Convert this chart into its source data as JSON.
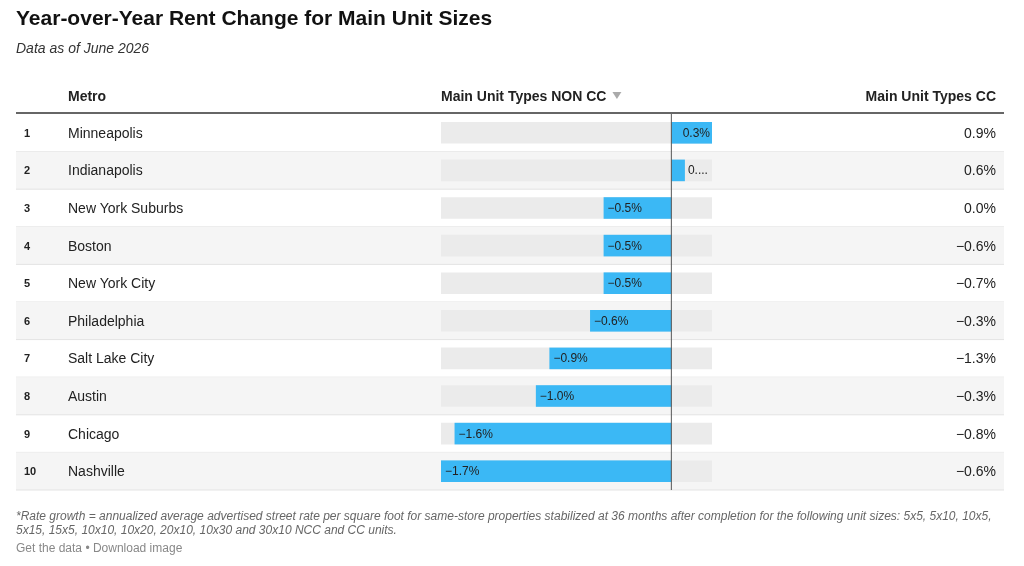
{
  "chart_data": [
    {
      "type": "bar",
      "orientation": "horizontal",
      "title": "Year-over-Year Rent Change for Main Unit Sizes",
      "subtitle": "Data as of June 2026",
      "ylabel": "Metro",
      "xlabel": "Main Unit Types NON CC",
      "categories": [
        "Minneapolis",
        "Indianapolis",
        "New York Suburbs",
        "Boston",
        "New York City",
        "Philadelphia",
        "Salt Lake City",
        "Austin",
        "Chicago",
        "Nashville"
      ],
      "values": [
        0.3,
        0.1,
        -0.5,
        -0.5,
        -0.5,
        -0.6,
        -0.9,
        -1.0,
        -1.6,
        -1.7
      ],
      "value_labels": [
        "0.3%",
        "0....",
        "−0.5%",
        "−0.5%",
        "−0.5%",
        "−0.6%",
        "−0.9%",
        "−1.0%",
        "−1.6%",
        "−1.7%"
      ],
      "color": "#3bb8f5",
      "bands": [
        {
          "axis": "x",
          "from": -1.7,
          "to": 0.3,
          "color": "#ebebeb"
        }
      ],
      "xlim": [
        -1.7,
        0.3
      ],
      "tick_labels": "y",
      "annotations": [
        "1",
        "2",
        "3",
        "4",
        "5",
        "6",
        "7",
        "8",
        "9",
        "10",
        "*Rate growth = annualized average advertised street rate per square foot for same-store properties stabilized at 36 months after completion for the following unit sizes: 5x5, 5x10, 10x5, 5x15, 15x5, 10x10, 10x20, 20x10, 10x30 and 30x10 NCC and CC units.",
        "Get the data • Download image"
      ]
    },
    {
      "type": "other",
      "title": "Main Unit Types CC",
      "values": [
        0.9,
        0.6,
        0.0,
        -0.6,
        -0.7,
        -0.3,
        -1.3,
        -0.3,
        -0.8,
        -0.6
      ],
      "value_labels": [
        "0.9%",
        "0.6%",
        "0.0%",
        "−0.6%",
        "−0.7%",
        "−0.3%",
        "−1.3%",
        "−0.3%",
        "−0.8%",
        "−0.6%"
      ]
    }
  ]
}
